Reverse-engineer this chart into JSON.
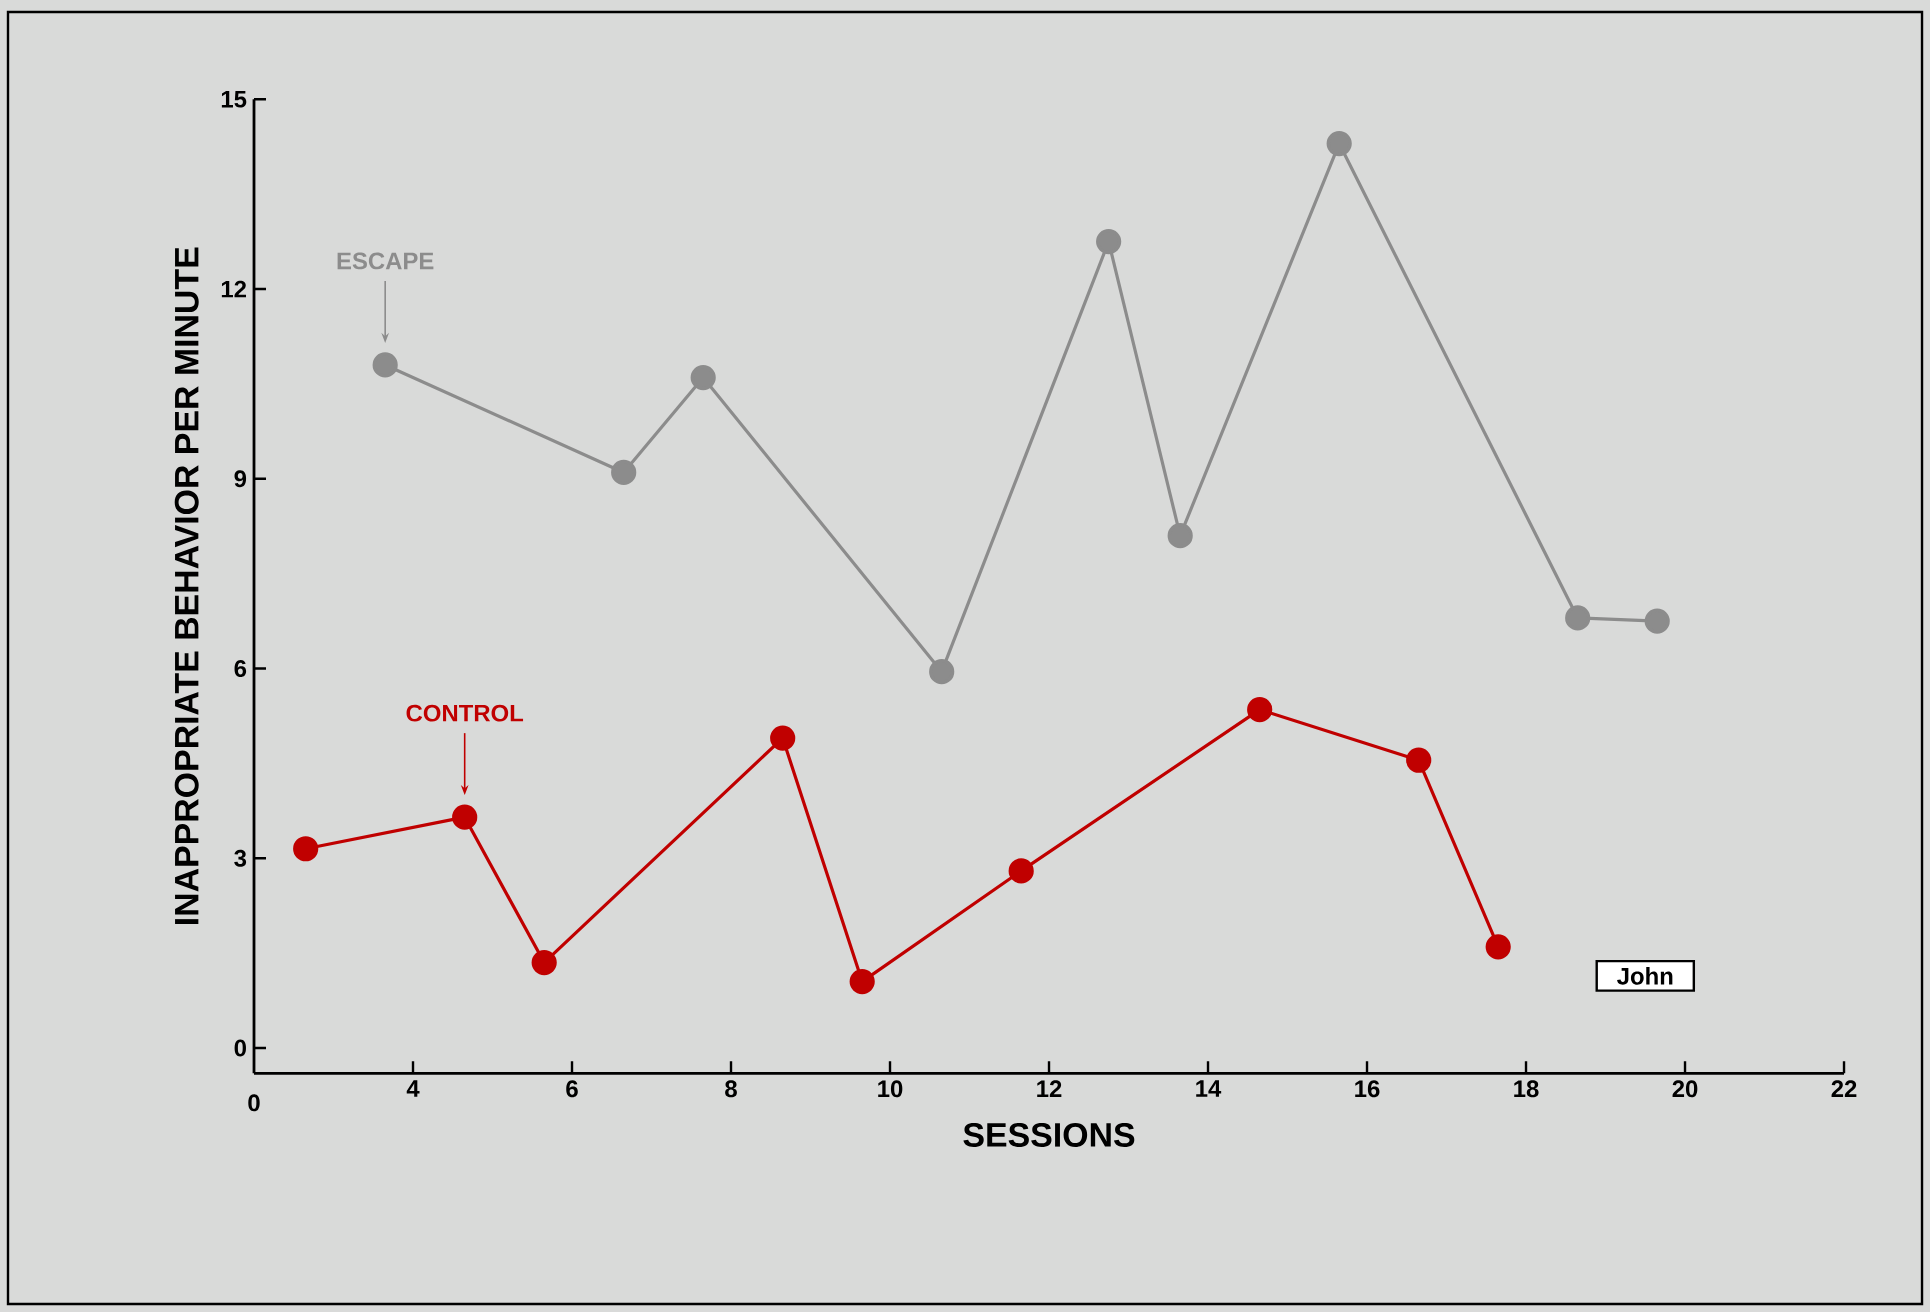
{
  "chart_data": {
    "type": "line",
    "xlabel": "SESSIONS",
    "ylabel": "INAPPROPRIATE BEHAVIOR PER MINUTE",
    "xlim": [
      2,
      22
    ],
    "xticks": [
      4,
      6,
      8,
      10,
      12,
      14,
      16,
      18,
      20,
      22
    ],
    "ylim": [
      -0.4,
      15
    ],
    "yticks": [
      0,
      3,
      6,
      9,
      12,
      15
    ],
    "grid": false,
    "marker": "circle",
    "line_style": "solid",
    "series": [
      {
        "name": "ESCAPE",
        "color": "#8c8c8c",
        "x": [
          3.65,
          6.65,
          7.65,
          10.65,
          12.75,
          13.65,
          15.65,
          18.65,
          19.65
        ],
        "values": [
          10.8,
          9.1,
          10.6,
          5.95,
          12.75,
          8.1,
          14.3,
          6.8,
          6.75
        ]
      },
      {
        "name": "CONTROL",
        "color": "#c00000",
        "x": [
          2.65,
          4.65,
          5.65,
          8.65,
          9.65,
          11.65,
          14.65,
          16.65,
          17.65
        ],
        "values": [
          3.15,
          3.65,
          1.35,
          4.9,
          1.05,
          2.8,
          5.35,
          4.55,
          1.6
        ]
      }
    ],
    "annotations": [
      "0",
      "John"
    ]
  }
}
